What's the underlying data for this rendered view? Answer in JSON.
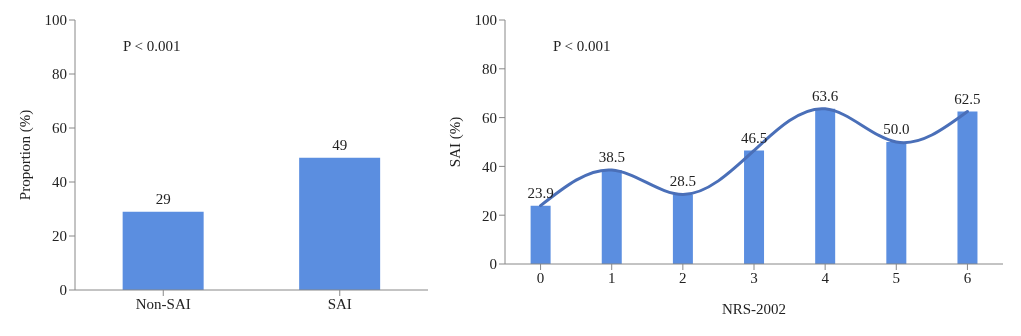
{
  "chart_data": [
    {
      "type": "bar",
      "categories": [
        "Non-SAI",
        "SAI"
      ],
      "values": [
        29,
        49
      ],
      "color": "#5b8ee0",
      "ylim": [
        0,
        100
      ],
      "yticks": [
        0,
        20,
        40,
        60,
        80,
        100
      ],
      "ylabel": "Proportion (%)",
      "data_labels": true,
      "annotations": [
        "P < 0.001"
      ]
    },
    {
      "type": "bar",
      "categories": [
        "0",
        "1",
        "2",
        "3",
        "4",
        "5",
        "6"
      ],
      "xlabel": "NRS-2002",
      "ylabel": "SAI (%)",
      "ylim": [
        0,
        100
      ],
      "yticks": [
        0,
        20,
        40,
        60,
        80,
        100
      ],
      "annotations": [
        "P < 0.001"
      ],
      "series": [
        {
          "color": "#5b8ee0",
          "values": [
            23.9,
            38.5,
            28.5,
            46.5,
            63.6,
            50.0,
            62.5
          ],
          "value_labels": [
            "23.9",
            "38.5",
            "28.5",
            "46.5",
            "63.6",
            "50.0",
            "62.5"
          ]
        },
        {
          "type": "line",
          "color": "#4a6fb8",
          "values": [
            23.9,
            38.5,
            28.5,
            46.5,
            63.6,
            50.0,
            62.5
          ]
        }
      ]
    }
  ]
}
